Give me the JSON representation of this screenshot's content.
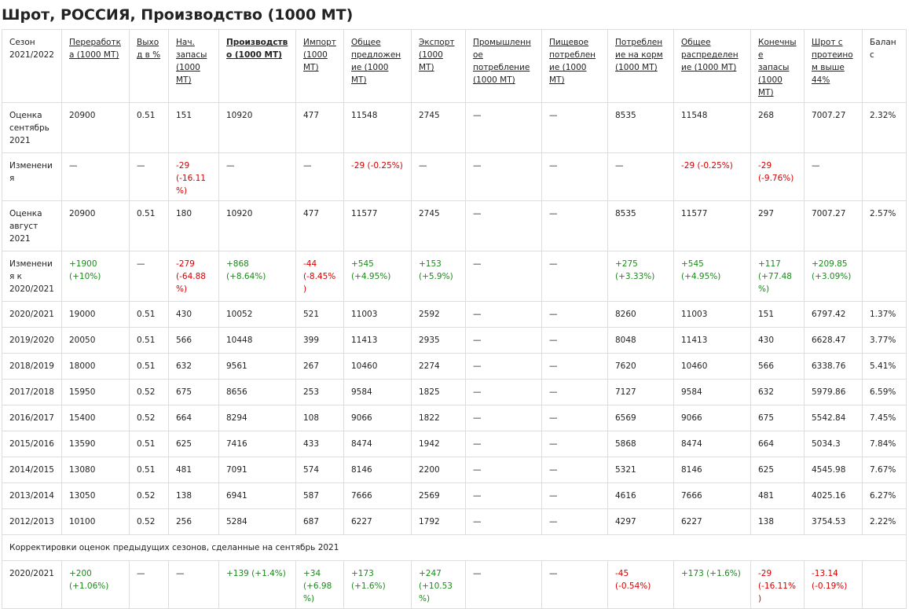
{
  "title": "Шрот, РОССИЯ, Производство (1000 МТ)",
  "table": {
    "header": [
      "Сезон 2021/2022",
      "Переработка (1000 МТ)",
      "Выход в %",
      "Нач. запасы (1000 МТ)",
      "Производство (1000 МТ)",
      "Импорт (1000 МТ)",
      "Общее предложение (1000 МТ)",
      "Экспорт (1000 МТ)",
      "Промышленное потребление (1000 МТ)",
      "Пищевое потребление (1000 МТ)",
      "Потребление на корм (1000 МТ)",
      "Общее распределение (1000 МТ)",
      "Конечные запасы (1000 МТ)",
      "Шрот с протеином выше 44%",
      "Баланс"
    ],
    "rows": [
      [
        "Оценка сентябрь 2021",
        "20900",
        "0.51",
        "151",
        "10920",
        "477",
        "11548",
        "2745",
        "—",
        "—",
        "8535",
        "11548",
        "268",
        "7007.27",
        "2.32%"
      ],
      [
        "Изменения",
        "—",
        "—",
        "-29 (-16.11%)",
        "—",
        "—",
        "-29 (-0.25%)",
        "—",
        "—",
        "—",
        "—",
        "-29 (-0.25%)",
        "-29 (-9.76%)",
        "—",
        null
      ],
      [
        "Оценка август 2021",
        "20900",
        "0.51",
        "180",
        "10920",
        "477",
        "11577",
        "2745",
        "—",
        "—",
        "8535",
        "11577",
        "297",
        "7007.27",
        "2.57%"
      ],
      [
        "Изменения к 2020/2021",
        "+1900 (+10%)",
        "—",
        "-279 (-64.88%)",
        "+868 (+8.64%)",
        "-44 (-8.45%)",
        "+545 (+4.95%)",
        "+153 (+5.9%)",
        "—",
        "—",
        "+275 (+3.33%)",
        "+545 (+4.95%)",
        "+117 (+77.48%)",
        "+209.85 (+3.09%)",
        null
      ],
      [
        "2020/2021",
        "19000",
        "0.51",
        "430",
        "10052",
        "521",
        "11003",
        "2592",
        "—",
        "—",
        "8260",
        "11003",
        "151",
        "6797.42",
        "1.37%"
      ],
      [
        "2019/2020",
        "20050",
        "0.51",
        "566",
        "10448",
        "399",
        "11413",
        "2935",
        "—",
        "—",
        "8048",
        "11413",
        "430",
        "6628.47",
        "3.77%"
      ],
      [
        "2018/2019",
        "18000",
        "0.51",
        "632",
        "9561",
        "267",
        "10460",
        "2274",
        "—",
        "—",
        "7620",
        "10460",
        "566",
        "6338.76",
        "5.41%"
      ],
      [
        "2017/2018",
        "15950",
        "0.52",
        "675",
        "8656",
        "253",
        "9584",
        "1825",
        "—",
        "—",
        "7127",
        "9584",
        "632",
        "5979.86",
        "6.59%"
      ],
      [
        "2016/2017",
        "15400",
        "0.52",
        "664",
        "8294",
        "108",
        "9066",
        "1822",
        "—",
        "—",
        "6569",
        "9066",
        "675",
        "5542.84",
        "7.45%"
      ],
      [
        "2015/2016",
        "13590",
        "0.51",
        "625",
        "7416",
        "433",
        "8474",
        "1942",
        "—",
        "—",
        "5868",
        "8474",
        "664",
        "5034.3",
        "7.84%"
      ],
      [
        "2014/2015",
        "13080",
        "0.51",
        "481",
        "7091",
        "574",
        "8146",
        "2200",
        "—",
        "—",
        "5321",
        "8146",
        "625",
        "4545.98",
        "7.67%"
      ],
      [
        "2013/2014",
        "13050",
        "0.52",
        "138",
        "6941",
        "587",
        "7666",
        "2569",
        "—",
        "—",
        "4616",
        "7666",
        "481",
        "4025.16",
        "6.27%"
      ],
      [
        "2012/2013",
        "10100",
        "0.52",
        "256",
        "5284",
        "687",
        "6227",
        "1792",
        "—",
        "—",
        "4297",
        "6227",
        "138",
        "3754.53",
        "2.22%"
      ]
    ],
    "note": "Корректировки оценок предыдущих сезонов, сделанные на сентябрь 2021",
    "corrections": [
      [
        "2020/2021",
        "+200 (+1.06%)",
        "—",
        "—",
        "+139 (+1.4%)",
        "+34 (+6.98%)",
        "+173 (+1.6%)",
        "+247 (+10.53%)",
        "—",
        "—",
        "-45 (-0.54%)",
        "+173 (+1.6%)",
        "-29 (-16.11%)",
        "-13.14 (-0.19%)",
        null
      ]
    ]
  }
}
